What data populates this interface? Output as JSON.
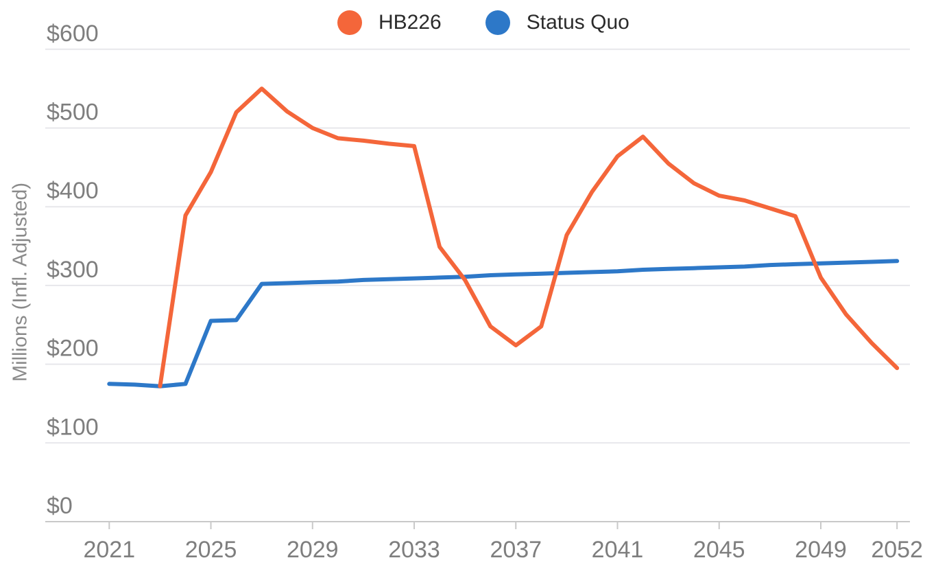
{
  "legend": {
    "items": [
      {
        "label": "HB226",
        "color": "#F4663A"
      },
      {
        "label": "Status Quo",
        "color": "#2D78C8"
      }
    ]
  },
  "y_axis_title": "Millions (Infl. Adjusted)",
  "chart_data": {
    "type": "line",
    "title": "",
    "xlabel": "",
    "ylabel": "Millions (Infl. Adjusted)",
    "ylim": [
      0,
      600
    ],
    "xlim": [
      2021,
      2052
    ],
    "grid": "horizontal",
    "legend_position": "top-center",
    "y_ticks": [
      0,
      100,
      200,
      300,
      400,
      500,
      600
    ],
    "y_tick_labels": [
      "$0",
      "$100",
      "$200",
      "$300",
      "$400",
      "$500",
      "$600"
    ],
    "x_ticks": [
      2021,
      2025,
      2029,
      2033,
      2037,
      2041,
      2045,
      2049,
      2052
    ],
    "x_tick_labels": [
      "2021",
      "2025",
      "2029",
      "2033",
      "2037",
      "2041",
      "2045",
      "2049",
      "2052"
    ],
    "x": [
      2021,
      2022,
      2023,
      2024,
      2025,
      2026,
      2027,
      2028,
      2029,
      2030,
      2031,
      2032,
      2033,
      2034,
      2035,
      2036,
      2037,
      2038,
      2039,
      2040,
      2041,
      2042,
      2043,
      2044,
      2045,
      2046,
      2047,
      2048,
      2049,
      2050,
      2051,
      2052
    ],
    "series": [
      {
        "name": "Status Quo",
        "color": "#2D78C8",
        "values": [
          175,
          174,
          172,
          175,
          255,
          256,
          302,
          303,
          304,
          305,
          307,
          308,
          309,
          310,
          311,
          313,
          314,
          315,
          316,
          317,
          318,
          320,
          321,
          322,
          323,
          324,
          326,
          327,
          328,
          329,
          330,
          331
        ]
      },
      {
        "name": "HB226",
        "color": "#F4663A",
        "values": [
          null,
          null,
          172,
          389,
          444,
          520,
          550,
          521,
          500,
          487,
          484,
          480,
          477,
          349,
          307,
          248,
          224,
          248,
          364,
          419,
          464,
          489,
          455,
          430,
          414,
          408,
          398,
          388,
          310,
          263,
          227,
          195
        ]
      }
    ],
    "style": {
      "line_width": 6,
      "grid_color": "#E7E7EB",
      "axis_line_color": "#C9C9C9",
      "tick_color": "#C9C9C9",
      "axis_label_color": "#7e7e7e"
    }
  }
}
